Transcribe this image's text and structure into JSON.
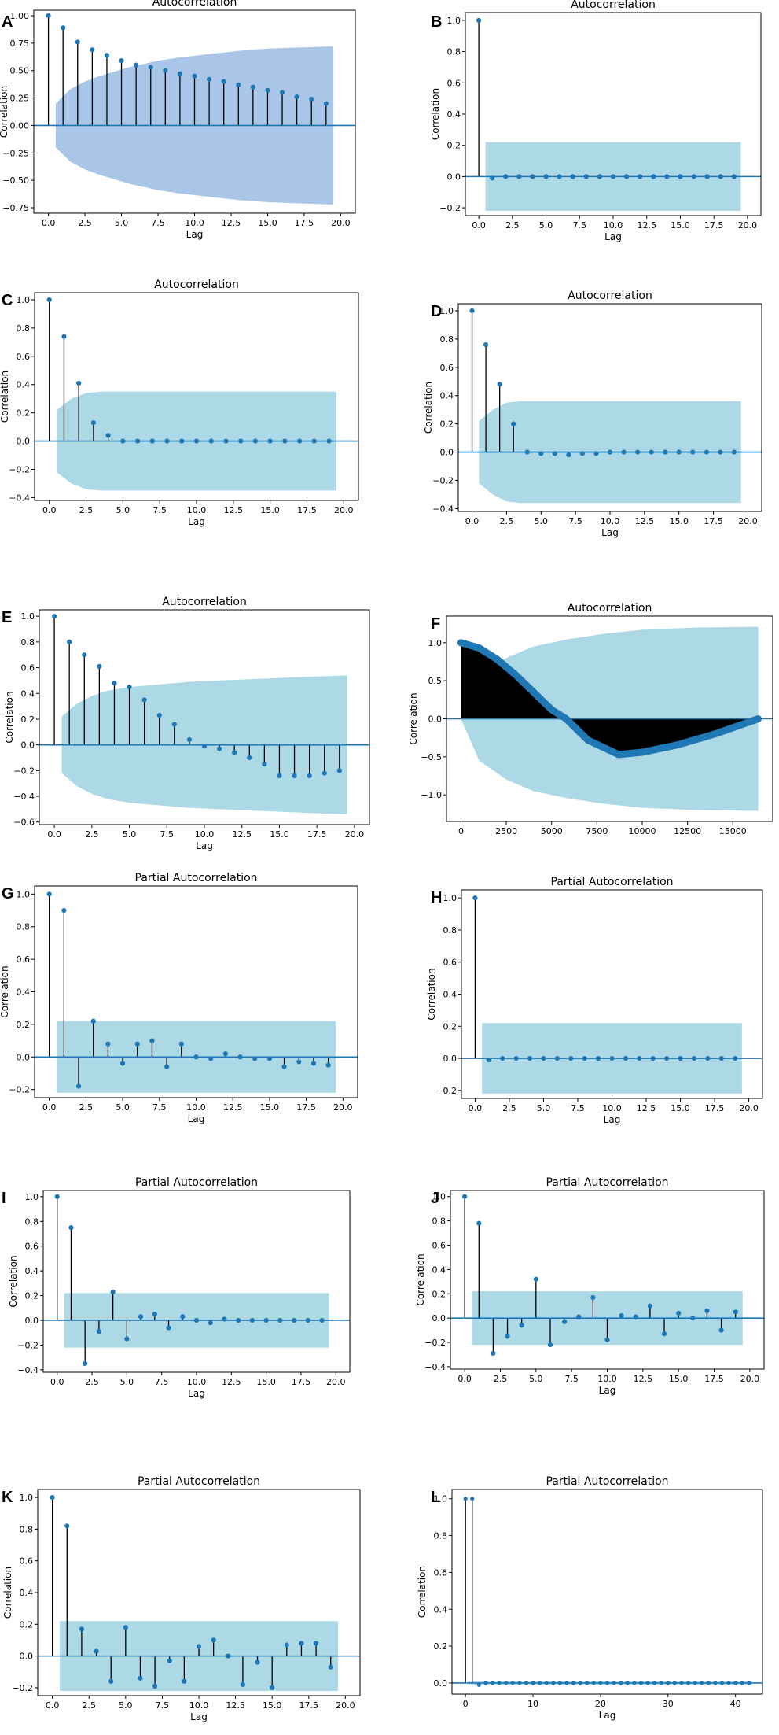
{
  "figure": {
    "colors": {
      "marker": "#1f77b4",
      "stem": "#000000",
      "band": "#add8e6",
      "band_dark": "#a9c6e8"
    }
  },
  "chart_data": [
    {
      "panel": "A",
      "type": "stem",
      "title": "Autocorrelation",
      "xlabel": "Lag",
      "ylabel": "Correlation",
      "xlim": [
        -1,
        21
      ],
      "ylim": [
        -0.8,
        1.05
      ],
      "xticks": [
        0,
        2.5,
        5,
        7.5,
        10,
        12.5,
        15,
        17.5,
        20
      ],
      "xtick_labels": [
        "0.0",
        "2.5",
        "5.0",
        "7.5",
        "10.0",
        "12.5",
        "15.0",
        "17.5",
        "20.0"
      ],
      "yticks": [
        -0.75,
        -0.5,
        -0.25,
        0,
        0.25,
        0.5,
        0.75,
        1
      ],
      "ytick_labels": [
        "−0.75",
        "−0.50",
        "−0.25",
        "0.00",
        "0.25",
        "0.50",
        "0.75",
        "1.00"
      ],
      "x": [
        0,
        1,
        2,
        3,
        4,
        5,
        6,
        7,
        8,
        9,
        10,
        11,
        12,
        13,
        14,
        15,
        16,
        17,
        18,
        19
      ],
      "values": [
        1.0,
        0.89,
        0.76,
        0.69,
        0.64,
        0.59,
        0.55,
        0.53,
        0.5,
        0.47,
        0.45,
        0.42,
        0.4,
        0.37,
        0.35,
        0.32,
        0.3,
        0.26,
        0.24,
        0.2
      ],
      "band_x": [
        0.5,
        1.5,
        2.5,
        3.5,
        4.5,
        5.5,
        6.5,
        7.5,
        9,
        11,
        13,
        15,
        17,
        19.5
      ],
      "band_upper": [
        0.2,
        0.33,
        0.4,
        0.45,
        0.49,
        0.53,
        0.56,
        0.59,
        0.62,
        0.65,
        0.68,
        0.7,
        0.71,
        0.72
      ],
      "band_color_key": "band_dark"
    },
    {
      "panel": "B",
      "type": "stem",
      "title": "Autocorrelation",
      "xlabel": "Lag",
      "ylabel": "Correlation",
      "xlim": [
        -1,
        21
      ],
      "ylim": [
        -0.25,
        1.05
      ],
      "xticks": [
        0,
        2.5,
        5,
        7.5,
        10,
        12.5,
        15,
        17.5,
        20
      ],
      "xtick_labels": [
        "0.0",
        "2.5",
        "5.0",
        "7.5",
        "10.0",
        "12.5",
        "15.0",
        "17.5",
        "20.0"
      ],
      "yticks": [
        -0.2,
        0,
        0.2,
        0.4,
        0.6,
        0.8,
        1
      ],
      "ytick_labels": [
        "−0.2",
        "0.0",
        "0.2",
        "0.4",
        "0.6",
        "0.8",
        "1.0"
      ],
      "x": [
        0,
        1,
        2,
        3,
        4,
        5,
        6,
        7,
        8,
        9,
        10,
        11,
        12,
        13,
        14,
        15,
        16,
        17,
        18,
        19
      ],
      "values": [
        1.0,
        -0.01,
        0.0,
        0.0,
        0.0,
        0.0,
        0.0,
        0.0,
        0.0,
        0.0,
        0.0,
        0.0,
        0.0,
        0.0,
        0.0,
        0.0,
        0.0,
        0.0,
        0.0,
        0.0
      ],
      "band_x": [
        0.5,
        19.5
      ],
      "band_upper": [
        0.22,
        0.22
      ],
      "band_color_key": "band"
    },
    {
      "panel": "C",
      "type": "stem",
      "title": "Autocorrelation",
      "xlabel": "Lag",
      "ylabel": "Correlation",
      "xlim": [
        -1,
        21
      ],
      "ylim": [
        -0.42,
        1.05
      ],
      "xticks": [
        0,
        2.5,
        5,
        7.5,
        10,
        12.5,
        15,
        17.5,
        20
      ],
      "xtick_labels": [
        "0.0",
        "2.5",
        "5.0",
        "7.5",
        "10.0",
        "12.5",
        "15.0",
        "17.5",
        "20.0"
      ],
      "yticks": [
        -0.4,
        -0.2,
        0,
        0.2,
        0.4,
        0.6,
        0.8,
        1
      ],
      "ytick_labels": [
        "−0.4",
        "−0.2",
        "0.0",
        "0.2",
        "0.4",
        "0.6",
        "0.8",
        "1.0"
      ],
      "x": [
        0,
        1,
        2,
        3,
        4,
        5,
        6,
        7,
        8,
        9,
        10,
        11,
        12,
        13,
        14,
        15,
        16,
        17,
        18,
        19
      ],
      "values": [
        1.0,
        0.74,
        0.41,
        0.13,
        0.04,
        0.0,
        0.0,
        0.0,
        0.0,
        0.0,
        0.0,
        0.0,
        0.0,
        0.0,
        0.0,
        0.0,
        0.0,
        0.0,
        0.0,
        0.0
      ],
      "band_x": [
        0.5,
        1.5,
        2.5,
        3.5,
        19.5
      ],
      "band_upper": [
        0.22,
        0.3,
        0.34,
        0.35,
        0.35
      ],
      "band_color_key": "band"
    },
    {
      "panel": "D",
      "type": "stem",
      "title": "Autocorrelation",
      "xlabel": "Lag",
      "ylabel": "Correlation",
      "xlim": [
        -1,
        21
      ],
      "ylim": [
        -0.42,
        1.05
      ],
      "xticks": [
        0,
        2.5,
        5,
        7.5,
        10,
        12.5,
        15,
        17.5,
        20
      ],
      "xtick_labels": [
        "0.0",
        "2.5",
        "5.0",
        "7.5",
        "10.0",
        "12.5",
        "15.0",
        "17.5",
        "20.0"
      ],
      "yticks": [
        -0.4,
        -0.2,
        0,
        0.2,
        0.4,
        0.6,
        0.8,
        1
      ],
      "ytick_labels": [
        "−0.4",
        "−0.2",
        "0.0",
        "0.2",
        "0.4",
        "0.6",
        "0.8",
        "1.0"
      ],
      "x": [
        0,
        1,
        2,
        3,
        4,
        5,
        6,
        7,
        8,
        9,
        10,
        11,
        12,
        13,
        14,
        15,
        16,
        17,
        18,
        19
      ],
      "values": [
        1.0,
        0.76,
        0.48,
        0.2,
        0.0,
        -0.01,
        -0.01,
        -0.02,
        -0.01,
        -0.01,
        0.0,
        0.0,
        0.0,
        0.0,
        0.0,
        0.0,
        0.0,
        0.0,
        0.0,
        0.0
      ],
      "band_x": [
        0.5,
        1.5,
        2.5,
        3.5,
        19.5
      ],
      "band_upper": [
        0.22,
        0.3,
        0.35,
        0.36,
        0.36
      ],
      "band_color_key": "band"
    },
    {
      "panel": "E",
      "type": "stem",
      "title": "Autocorrelation",
      "xlabel": "Lag",
      "ylabel": "Correlation",
      "xlim": [
        -1,
        21
      ],
      "ylim": [
        -0.62,
        1.05
      ],
      "xticks": [
        0,
        2.5,
        5,
        7.5,
        10,
        12.5,
        15,
        17.5,
        20
      ],
      "xtick_labels": [
        "0.0",
        "2.5",
        "5.0",
        "7.5",
        "10.0",
        "12.5",
        "15.0",
        "17.5",
        "20.0"
      ],
      "yticks": [
        -0.6,
        -0.4,
        -0.2,
        0,
        0.2,
        0.4,
        0.6,
        0.8,
        1
      ],
      "ytick_labels": [
        "−0.6",
        "−0.4",
        "−0.2",
        "0.0",
        "0.2",
        "0.4",
        "0.6",
        "0.8",
        "1.0"
      ],
      "x": [
        0,
        1,
        2,
        3,
        4,
        5,
        6,
        7,
        8,
        9,
        10,
        11,
        12,
        13,
        14,
        15,
        16,
        17,
        18,
        19
      ],
      "values": [
        1.0,
        0.8,
        0.7,
        0.61,
        0.48,
        0.45,
        0.35,
        0.23,
        0.16,
        0.04,
        -0.01,
        -0.03,
        -0.06,
        -0.1,
        -0.15,
        -0.24,
        -0.24,
        -0.24,
        -0.22,
        -0.2
      ],
      "band_x": [
        0.5,
        1.5,
        2.5,
        3.5,
        5,
        7,
        9,
        11,
        13,
        15,
        17,
        19.5
      ],
      "band_upper": [
        0.22,
        0.32,
        0.38,
        0.42,
        0.45,
        0.47,
        0.49,
        0.5,
        0.51,
        0.52,
        0.53,
        0.54
      ],
      "band_color_key": "band"
    },
    {
      "panel": "F",
      "type": "filled_acf",
      "title": "Autocorrelation",
      "xlabel": "",
      "ylabel": "Correlation",
      "xlim": [
        -800,
        17200
      ],
      "ylim": [
        -1.35,
        1.35
      ],
      "xticks": [
        0,
        2500,
        5000,
        7500,
        10000,
        12500,
        15000
      ],
      "xtick_labels": [
        "0",
        "2500",
        "5000",
        "7500",
        "10000",
        "12500",
        "15000"
      ],
      "yticks": [
        -1,
        -0.5,
        0,
        0.5,
        1
      ],
      "ytick_labels": [
        "−1.0",
        "−0.5",
        "0.0",
        "0.5",
        "1.0"
      ],
      "x": [
        0,
        1000,
        2000,
        3000,
        4000,
        5000,
        5800,
        7000,
        8700,
        10000,
        12000,
        14000,
        16400
      ],
      "values": [
        1.0,
        0.93,
        0.78,
        0.58,
        0.35,
        0.12,
        0.0,
        -0.28,
        -0.47,
        -0.44,
        -0.34,
        -0.2,
        0.0
      ],
      "band_x": [
        0,
        1000,
        2500,
        4000,
        6000,
        8000,
        10000,
        13000,
        16400
      ],
      "band_upper": [
        0.0,
        0.55,
        0.8,
        0.95,
        1.05,
        1.12,
        1.17,
        1.2,
        1.21
      ],
      "band_color_key": "band"
    },
    {
      "panel": "G",
      "type": "stem",
      "title": "Partial Autocorrelation",
      "xlabel": "Lag",
      "ylabel": "Correlation",
      "xlim": [
        -1,
        21
      ],
      "ylim": [
        -0.25,
        1.05
      ],
      "xticks": [
        0,
        2.5,
        5,
        7.5,
        10,
        12.5,
        15,
        17.5,
        20
      ],
      "xtick_labels": [
        "0.0",
        "2.5",
        "5.0",
        "7.5",
        "10.0",
        "12.5",
        "15.0",
        "17.5",
        "20.0"
      ],
      "yticks": [
        -0.2,
        0,
        0.2,
        0.4,
        0.6,
        0.8,
        1
      ],
      "ytick_labels": [
        "−0.2",
        "0.0",
        "0.2",
        "0.4",
        "0.6",
        "0.8",
        "1.0"
      ],
      "x": [
        0,
        1,
        2,
        3,
        4,
        5,
        6,
        7,
        8,
        9,
        10,
        11,
        12,
        13,
        14,
        15,
        16,
        17,
        18,
        19
      ],
      "values": [
        1.0,
        0.9,
        -0.18,
        0.22,
        0.08,
        -0.04,
        0.08,
        0.1,
        -0.06,
        0.08,
        0.0,
        -0.01,
        0.02,
        0.0,
        -0.01,
        -0.01,
        -0.06,
        -0.03,
        -0.04,
        -0.05
      ],
      "band_x": [
        0.5,
        19.5
      ],
      "band_upper": [
        0.22,
        0.22
      ],
      "band_color_key": "band"
    },
    {
      "panel": "H",
      "type": "stem",
      "title": "Partial Autocorrelation",
      "xlabel": "Lag",
      "ylabel": "Correlation",
      "xlim": [
        -1,
        21
      ],
      "ylim": [
        -0.25,
        1.05
      ],
      "xticks": [
        0,
        2.5,
        5,
        7.5,
        10,
        12.5,
        15,
        17.5,
        20
      ],
      "xtick_labels": [
        "0.0",
        "2.5",
        "5.0",
        "7.5",
        "10.0",
        "12.5",
        "15.0",
        "17.5",
        "20.0"
      ],
      "yticks": [
        -0.2,
        0,
        0.2,
        0.4,
        0.6,
        0.8,
        1
      ],
      "ytick_labels": [
        "−0.2",
        "0.0",
        "0.2",
        "0.4",
        "0.6",
        "0.8",
        "1.0"
      ],
      "x": [
        0,
        1,
        2,
        3,
        4,
        5,
        6,
        7,
        8,
        9,
        10,
        11,
        12,
        13,
        14,
        15,
        16,
        17,
        18,
        19
      ],
      "values": [
        1.0,
        -0.01,
        0.0,
        0.0,
        0.0,
        0.0,
        0.0,
        0.0,
        0.0,
        0.0,
        0.0,
        0.0,
        0.0,
        0.0,
        0.0,
        0.0,
        0.0,
        0.0,
        0.0,
        0.0
      ],
      "band_x": [
        0.5,
        19.5
      ],
      "band_upper": [
        0.22,
        0.22
      ],
      "band_color_key": "band"
    },
    {
      "panel": "I",
      "type": "stem",
      "title": "Partial Autocorrelation",
      "xlabel": "Lag",
      "ylabel": "Correlation",
      "xlim": [
        -1,
        21
      ],
      "ylim": [
        -0.42,
        1.05
      ],
      "xticks": [
        0,
        2.5,
        5,
        7.5,
        10,
        12.5,
        15,
        17.5,
        20
      ],
      "xtick_labels": [
        "0.0",
        "2.5",
        "5.0",
        "7.5",
        "10.0",
        "12.5",
        "15.0",
        "17.5",
        "20.0"
      ],
      "yticks": [
        -0.4,
        -0.2,
        0,
        0.2,
        0.4,
        0.6,
        0.8,
        1
      ],
      "ytick_labels": [
        "−0.4",
        "−0.2",
        "0.0",
        "0.2",
        "0.4",
        "0.6",
        "0.8",
        "1.0"
      ],
      "x": [
        0,
        1,
        2,
        3,
        4,
        5,
        6,
        7,
        8,
        9,
        10,
        11,
        12,
        13,
        14,
        15,
        16,
        17,
        18,
        19
      ],
      "values": [
        1.0,
        0.75,
        -0.35,
        -0.09,
        0.23,
        -0.15,
        0.03,
        0.05,
        -0.06,
        0.03,
        0.0,
        -0.02,
        0.01,
        0.0,
        0.0,
        0.0,
        0.0,
        0.0,
        0.0,
        0.0
      ],
      "band_x": [
        0.5,
        19.5
      ],
      "band_upper": [
        0.22,
        0.22
      ],
      "band_color_key": "band"
    },
    {
      "panel": "J",
      "type": "stem",
      "title": "Partial Autocorrelation",
      "xlabel": "Lag",
      "ylabel": "Correlation",
      "xlim": [
        -1,
        21
      ],
      "ylim": [
        -0.42,
        1.05
      ],
      "xticks": [
        0,
        2.5,
        5,
        7.5,
        10,
        12.5,
        15,
        17.5,
        20
      ],
      "xtick_labels": [
        "0.0",
        "2.5",
        "5.0",
        "7.5",
        "10.0",
        "12.5",
        "15.0",
        "17.5",
        "20.0"
      ],
      "yticks": [
        -0.4,
        -0.2,
        0,
        0.2,
        0.4,
        0.6,
        0.8,
        1
      ],
      "ytick_labels": [
        "−0.4",
        "−0.2",
        "0.0",
        "0.2",
        "0.4",
        "0.6",
        "0.8",
        "1.0"
      ],
      "x": [
        0,
        1,
        2,
        3,
        4,
        5,
        6,
        7,
        8,
        9,
        10,
        11,
        12,
        13,
        14,
        15,
        16,
        17,
        18,
        19
      ],
      "values": [
        1.0,
        0.78,
        -0.29,
        -0.15,
        -0.06,
        0.32,
        -0.22,
        -0.03,
        0.01,
        0.17,
        -0.18,
        0.02,
        0.01,
        0.1,
        -0.13,
        0.04,
        0.0,
        0.06,
        -0.1,
        0.05
      ],
      "band_x": [
        0.5,
        19.5
      ],
      "band_upper": [
        0.22,
        0.22
      ],
      "band_color_key": "band"
    },
    {
      "panel": "K",
      "type": "stem",
      "title": "Partial Autocorrelation",
      "xlabel": "Lag",
      "ylabel": "Correlation",
      "xlim": [
        -1,
        21
      ],
      "ylim": [
        -0.25,
        1.05
      ],
      "xticks": [
        0,
        2.5,
        5,
        7.5,
        10,
        12.5,
        15,
        17.5,
        20
      ],
      "xtick_labels": [
        "0.0",
        "2.5",
        "5.0",
        "7.5",
        "10.0",
        "12.5",
        "15.0",
        "17.5",
        "20.0"
      ],
      "yticks": [
        -0.2,
        0,
        0.2,
        0.4,
        0.6,
        0.8,
        1
      ],
      "ytick_labels": [
        "−0.2",
        "0.0",
        "0.2",
        "0.4",
        "0.6",
        "0.8",
        "1.0"
      ],
      "x": [
        0,
        1,
        2,
        3,
        4,
        5,
        6,
        7,
        8,
        9,
        10,
        11,
        12,
        13,
        14,
        15,
        16,
        17,
        18,
        19
      ],
      "values": [
        1.0,
        0.82,
        0.17,
        0.03,
        -0.16,
        0.18,
        -0.14,
        -0.19,
        -0.03,
        -0.16,
        0.06,
        0.1,
        0.0,
        -0.18,
        -0.04,
        -0.2,
        0.07,
        0.08,
        0.08,
        -0.07
      ],
      "band_x": [
        0.5,
        19.5
      ],
      "band_upper": [
        0.22,
        0.22
      ],
      "band_color_key": "band"
    },
    {
      "panel": "L",
      "type": "stem",
      "title": "Partial Autocorrelation",
      "xlabel": "Lag",
      "ylabel": "Correlation",
      "xlim": [
        -2,
        44
      ],
      "ylim": [
        -0.06,
        1.05
      ],
      "xticks": [
        0,
        10,
        20,
        30,
        40
      ],
      "xtick_labels": [
        "0",
        "10",
        "20",
        "30",
        "40"
      ],
      "yticks": [
        0,
        0.2,
        0.4,
        0.6,
        0.8,
        1
      ],
      "ytick_labels": [
        "0.0",
        "0.2",
        "0.4",
        "0.6",
        "0.8",
        "1.0"
      ],
      "x": [
        0,
        1,
        2,
        3,
        4,
        5,
        6,
        7,
        8,
        9,
        10,
        11,
        12,
        13,
        14,
        15,
        16,
        17,
        18,
        19,
        20,
        21,
        22,
        23,
        24,
        25,
        26,
        27,
        28,
        29,
        30,
        31,
        32,
        33,
        34,
        35,
        36,
        37,
        38,
        39,
        40,
        41,
        42
      ],
      "values": [
        1.0,
        1.0,
        -0.01,
        0.0,
        0.0,
        0.0,
        0.0,
        0.0,
        0.0,
        0.0,
        0.0,
        0.0,
        0.0,
        0.0,
        0.0,
        0.0,
        0.0,
        0.0,
        0.0,
        0.0,
        0.0,
        0.0,
        0.0,
        0.0,
        0.0,
        0.0,
        0.0,
        0.0,
        0.0,
        0.0,
        0.0,
        0.0,
        0.0,
        0.0,
        0.0,
        0.0,
        0.0,
        0.0,
        0.0,
        0.0,
        0.0,
        0.0,
        0.0
      ],
      "band_x": [
        0.5,
        42.5
      ],
      "band_upper": [
        0.008,
        0.008
      ],
      "band_color_key": "band"
    }
  ]
}
